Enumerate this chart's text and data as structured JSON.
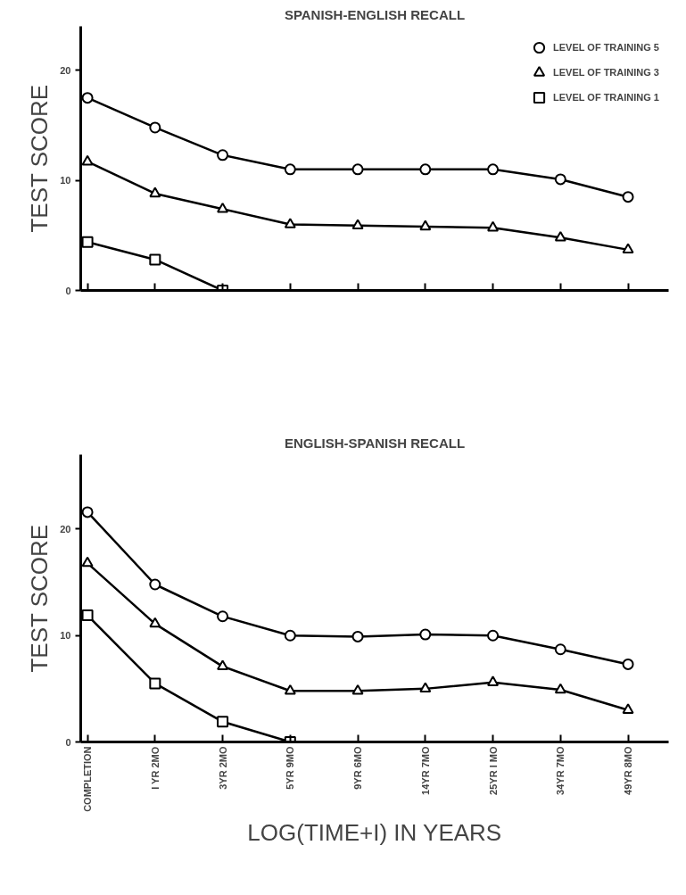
{
  "chart_data": [
    {
      "type": "line",
      "title": "SPANISH-ENGLISH RECALL",
      "ylabel": "TEST SCORE",
      "categories": [
        null,
        null,
        null,
        null,
        null,
        null,
        null,
        null,
        null
      ],
      "ylim": [
        0,
        24
      ],
      "yticks": [
        0,
        10,
        20
      ],
      "tick_labels": "y",
      "legend": "top right",
      "line_style": "solid",
      "series": [
        {
          "name": "LEVEL OF TRAINING 5",
          "color": "#000000",
          "marker": "circle",
          "values": [
            17.5,
            14.8,
            12.3,
            11.0,
            11.0,
            11.0,
            11.0,
            10.1,
            8.5
          ]
        },
        {
          "name": "LEVEL OF TRAINING 3",
          "color": "#000000",
          "marker": "triangle",
          "values": [
            11.7,
            8.8,
            7.4,
            6.0,
            5.9,
            5.8,
            5.7,
            4.8,
            3.7
          ]
        },
        {
          "name": "LEVEL OF TRAINING 1",
          "color": "#000000",
          "marker": "square",
          "values": [
            4.4,
            2.8,
            0,
            null,
            null,
            null,
            null,
            null,
            null
          ]
        }
      ]
    },
    {
      "type": "line",
      "title": "ENGLISH-SPANISH RECALL",
      "ylabel": "TEST SCORE",
      "xlabel": "LOG(TIME+I) IN YEARS",
      "categories": [
        "COMPLETION",
        "I YR 2MO",
        "3YR 2MO",
        "5YR 9MO",
        "9YR 6MO",
        "14YR 7MO",
        "25YR I MO",
        "34YR 7MO",
        "49YR 8MO"
      ],
      "ylim": [
        0,
        27
      ],
      "yticks": [
        0,
        10,
        20
      ],
      "line_style": "solid",
      "series": [
        {
          "color": "#000000",
          "marker": "circle",
          "values": [
            21.6,
            14.8,
            11.8,
            10.0,
            9.9,
            10.1,
            10.0,
            8.7,
            7.3
          ]
        },
        {
          "color": "#000000",
          "marker": "triangle",
          "values": [
            16.8,
            11.1,
            7.1,
            4.8,
            4.8,
            5.0,
            5.6,
            4.9,
            3.0
          ]
        },
        {
          "color": "#000000",
          "marker": "square",
          "values": [
            11.9,
            5.5,
            1.9,
            0,
            null,
            null,
            null,
            null,
            null
          ]
        }
      ]
    }
  ]
}
